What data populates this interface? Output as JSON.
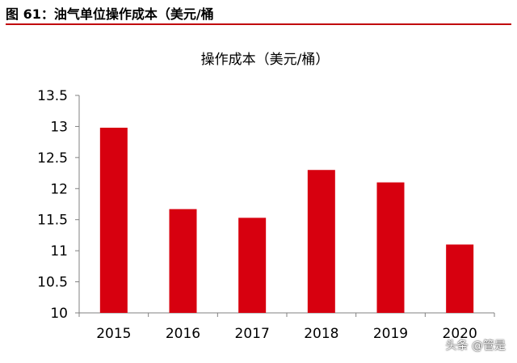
{
  "header": {
    "caption": "图 61：油气单位操作成本（美元/桶"
  },
  "watermark": "头条 @管是",
  "colors": {
    "bar": "#d7000f",
    "header_rule": "#c0000b",
    "axis": "#808080"
  },
  "chart_data": {
    "type": "bar",
    "title": "操作成本（美元/桶）",
    "categories": [
      "2015",
      "2016",
      "2017",
      "2018",
      "2019",
      "2020"
    ],
    "values": [
      12.98,
      11.67,
      11.53,
      12.3,
      12.1,
      11.1
    ],
    "ylim": [
      10,
      13.5
    ],
    "yticks": [
      "10",
      "10.5",
      "11",
      "11.5",
      "12",
      "12.5",
      "13",
      "13.5"
    ],
    "xlabel": "",
    "ylabel": "",
    "grid": false,
    "legend": "none"
  }
}
